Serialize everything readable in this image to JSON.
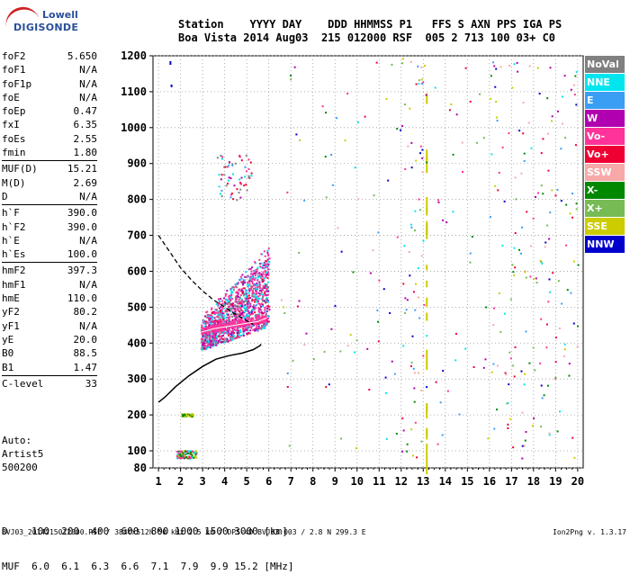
{
  "logo": {
    "line1": "Lowell",
    "line2": "DIGISONDE"
  },
  "header": {
    "line1": "Station    YYYY DAY    DDD HHMMSS P1   FFS S AXN PPS IGA PS",
    "line2": "Boa Vista 2014 Aug03  215 012000 RSF  005 2 713 100 03+ C0"
  },
  "params": [
    [
      {
        "k": "foF2",
        "v": "5.650"
      },
      {
        "k": "foF1",
        "v": "N/A"
      },
      {
        "k": "foF1p",
        "v": "N/A"
      },
      {
        "k": "foE",
        "v": "N/A"
      },
      {
        "k": "foEp",
        "v": "0.47"
      },
      {
        "k": "fxI",
        "v": "6.35"
      },
      {
        "k": "foEs",
        "v": "2.55"
      },
      {
        "k": "fmin",
        "v": "1.80"
      }
    ],
    [
      {
        "k": "MUF(D)",
        "v": "15.21"
      },
      {
        "k": "M(D)",
        "v": "2.69"
      },
      {
        "k": "D",
        "v": "N/A"
      }
    ],
    [
      {
        "k": "h`F",
        "v": "390.0"
      },
      {
        "k": "h`F2",
        "v": "390.0"
      },
      {
        "k": "h`E",
        "v": "N/A"
      },
      {
        "k": "h`Es",
        "v": "100.0"
      }
    ],
    [
      {
        "k": "hmF2",
        "v": "397.3"
      },
      {
        "k": "hmF1",
        "v": "N/A"
      },
      {
        "k": "hmE",
        "v": "110.0"
      },
      {
        "k": "yF2",
        "v": "80.2"
      },
      {
        "k": "yF1",
        "v": "N/A"
      },
      {
        "k": "yE",
        "v": "20.0"
      },
      {
        "k": "B0",
        "v": "88.5"
      },
      {
        "k": "B1",
        "v": "1.47"
      }
    ],
    [
      {
        "k": "C-level",
        "v": "33"
      }
    ]
  ],
  "auto": {
    "l1": "Auto:",
    "l2": "Artist5",
    "l3": "500200"
  },
  "dtable": {
    "row1": "D    100  200  400  600  800 1000 1500 3000 [km]",
    "row2": "MUF  6.0  6.1  6.3  6.6  7.1  7.9  9.9 15.2 [MHz]"
  },
  "footer": "BVJ03_2014215012000.RSF / 384fx512h 50 kHz 2.5 km / DPS-4D BVJ03 003 / 2.8 N 299.3 E",
  "version": "Ion2Png v. 1.3.17",
  "legend": [
    {
      "label": "NoVal",
      "color": "#808080"
    },
    {
      "label": "NNE",
      "color": "#00e5ee"
    },
    {
      "label": "E",
      "color": "#3a9ef5"
    },
    {
      "label": "W",
      "color": "#b000b0"
    },
    {
      "label": "Vo-",
      "color": "#ff3399"
    },
    {
      "label": "Vo+",
      "color": "#ee0033"
    },
    {
      "label": "SSW",
      "color": "#f7a8a8"
    },
    {
      "label": "X-",
      "color": "#008800"
    },
    {
      "label": "X+",
      "color": "#77bb55"
    },
    {
      "label": "SSE",
      "color": "#cccc00"
    },
    {
      "label": "NNW",
      "color": "#0000cc"
    }
  ],
  "chart_data": {
    "type": "scatter",
    "x_ticks": [
      "1",
      "2",
      "3",
      "4",
      "5",
      "6",
      "7",
      "8",
      "9",
      "10",
      "11",
      "12",
      "13",
      "14",
      "15",
      "16",
      "17",
      "18",
      "19",
      "20"
    ],
    "y_ticks": [
      "80",
      "100",
      "200",
      "300",
      "400",
      "500",
      "600",
      "700",
      "800",
      "900",
      "1000",
      "1100",
      "1200"
    ],
    "xlim": [
      0.75,
      20.25
    ],
    "ylim": [
      80,
      1200
    ],
    "grid": true,
    "profile_curve": {
      "x": [
        1.0,
        1.3,
        1.8,
        2.4,
        3.0,
        3.6,
        4.2,
        4.8,
        5.3,
        5.6,
        5.65
      ],
      "y": [
        235,
        250,
        280,
        310,
        335,
        355,
        365,
        372,
        382,
        393,
        397
      ]
    },
    "dashed_curve": {
      "x": [
        1.0,
        1.5,
        2.0,
        2.5,
        3.0,
        3.5,
        4.0,
        4.5,
        5.0,
        5.3
      ],
      "y": [
        700,
        655,
        610,
        575,
        545,
        520,
        500,
        480,
        462,
        452
      ]
    },
    "traces": [
      {
        "name": "F2 trace",
        "x": [
          2.9,
          3.5,
          4.0,
          4.5,
          5.0,
          5.5,
          5.9
        ],
        "y": [
          430,
          440,
          445,
          450,
          455,
          460,
          470
        ]
      },
      {
        "name": "Es trace",
        "x": [
          2.0,
          2.3,
          2.55
        ],
        "y": [
          200,
          200,
          200
        ]
      },
      {
        "name": "E trace",
        "x": [
          1.8,
          2.2,
          2.6
        ],
        "y": [
          100,
          100,
          100
        ]
      }
    ]
  }
}
